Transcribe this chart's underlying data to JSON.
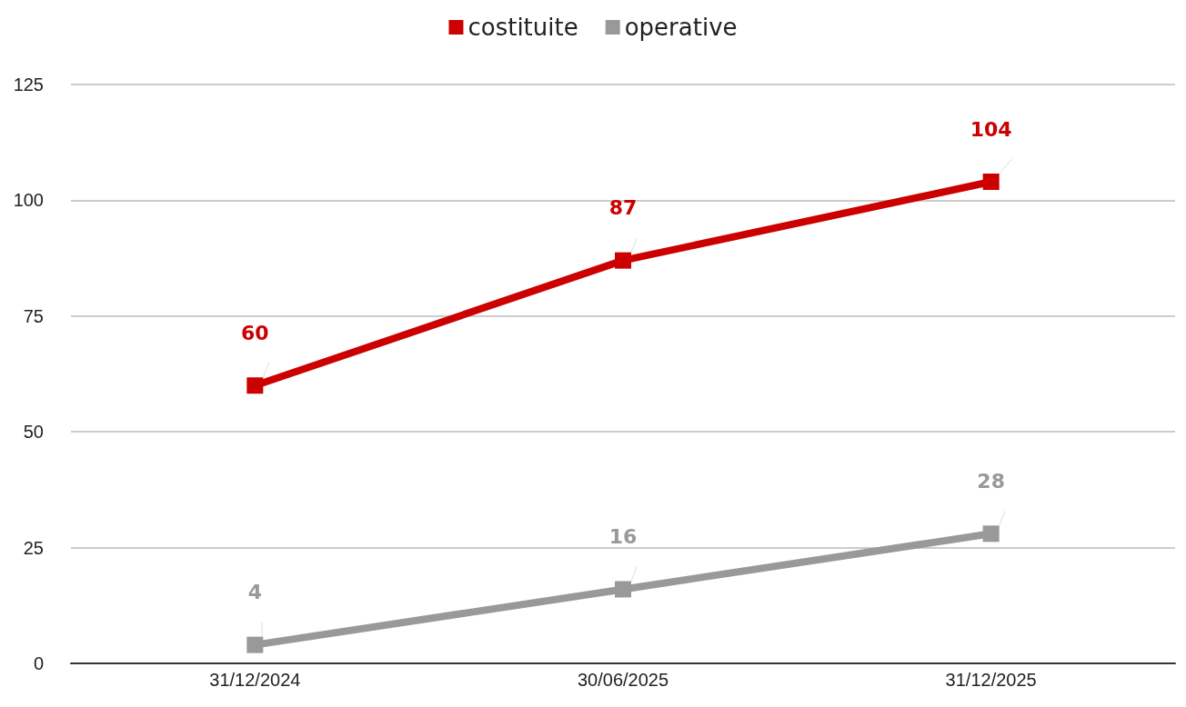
{
  "chart_data": {
    "type": "line",
    "categories": [
      "31/12/2024",
      "30/06/2025",
      "31/12/2025"
    ],
    "series": [
      {
        "name": "costituite",
        "color": "#cc0000",
        "values": [
          60,
          87,
          104
        ]
      },
      {
        "name": "operative",
        "color": "#999999",
        "values": [
          4,
          16,
          28
        ]
      }
    ],
    "ylim": [
      0,
      125
    ],
    "yticks": [
      0,
      25,
      50,
      75,
      100,
      125
    ],
    "grid": "y",
    "legend": "top",
    "marker": "square",
    "line_style": "solid",
    "data_labels": true
  }
}
